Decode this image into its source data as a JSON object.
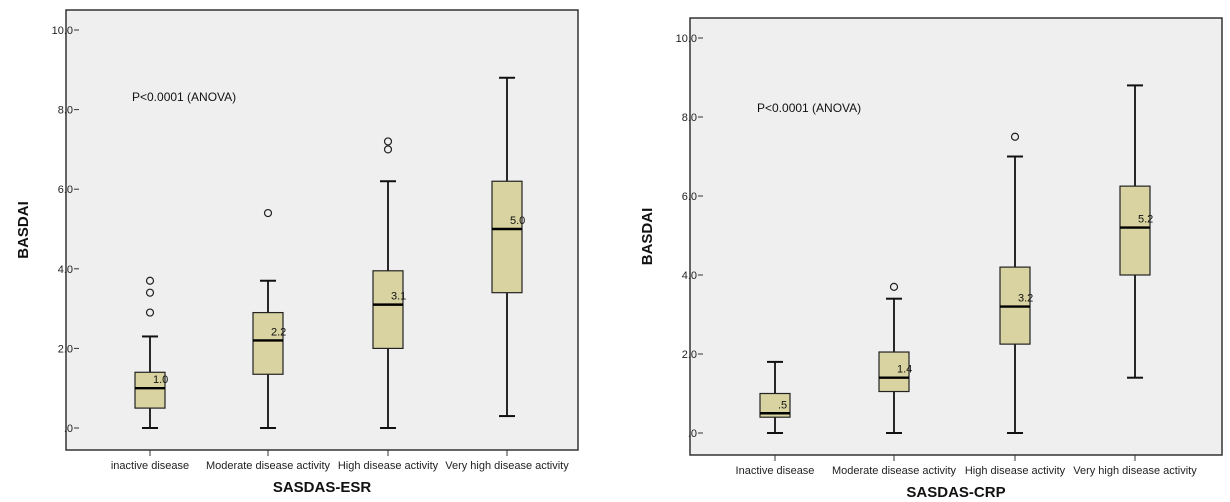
{
  "chart_data": [
    {
      "type": "boxplot",
      "xlabel": "SASDAS-ESR",
      "ylabel": "BASDAI",
      "annotation": "P<0.0001 (ANOVA)",
      "ylim": [
        0,
        10
      ],
      "yticks": [
        ".0",
        "2.0",
        "4.0",
        "6.0",
        "8.0",
        "10.0"
      ],
      "ytick_values": [
        0,
        2,
        4,
        6,
        8,
        10
      ],
      "categories": [
        "inactive disease",
        "Moderate disease activity",
        "High disease activity",
        "Very high disease activity"
      ],
      "boxes": [
        {
          "whisker_low": 0.0,
          "q1": 0.5,
          "median": 1.0,
          "q3": 1.4,
          "whisker_high": 2.3,
          "outliers": [
            2.9,
            3.4,
            3.7
          ],
          "median_label": "1.0"
        },
        {
          "whisker_low": 0.0,
          "q1": 1.35,
          "median": 2.2,
          "q3": 2.9,
          "whisker_high": 3.7,
          "outliers": [
            5.4
          ],
          "median_label": "2.2"
        },
        {
          "whisker_low": 0.0,
          "q1": 2.0,
          "median": 3.1,
          "q3": 3.95,
          "whisker_high": 6.2,
          "outliers": [
            7.0,
            7.2
          ],
          "median_label": "3.1"
        },
        {
          "whisker_low": 0.3,
          "q1": 3.4,
          "median": 5.0,
          "q3": 6.2,
          "whisker_high": 8.8,
          "outliers": [],
          "median_label": "5.0"
        }
      ]
    },
    {
      "type": "boxplot",
      "xlabel": "SASDAS-CRP",
      "ylabel": "BASDAI",
      "annotation": "P<0.0001 (ANOVA)",
      "ylim": [
        0,
        10
      ],
      "yticks": [
        ".0",
        "2.0",
        "4.0",
        "6.0",
        "8.0",
        "10.0"
      ],
      "ytick_values": [
        0,
        2,
        4,
        6,
        8,
        10
      ],
      "categories": [
        "Inactive disease",
        "Moderate disease activity",
        "High disease activity",
        "Very high disease activity"
      ],
      "boxes": [
        {
          "whisker_low": 0.0,
          "q1": 0.4,
          "median": 0.5,
          "q3": 1.0,
          "whisker_high": 1.8,
          "outliers": [],
          "median_label": ".5"
        },
        {
          "whisker_low": 0.0,
          "q1": 1.05,
          "median": 1.4,
          "q3": 2.05,
          "whisker_high": 3.4,
          "outliers": [
            3.7
          ],
          "median_label": "1.4"
        },
        {
          "whisker_low": 0.0,
          "q1": 2.25,
          "median": 3.2,
          "q3": 4.2,
          "whisker_high": 7.0,
          "outliers": [
            7.5
          ],
          "median_label": "3.2"
        },
        {
          "whisker_low": 1.4,
          "q1": 4.0,
          "median": 5.2,
          "q3": 6.25,
          "whisker_high": 8.8,
          "outliers": [],
          "median_label": "5.2"
        }
      ]
    }
  ],
  "colors": {
    "plot_bg": "#efefef",
    "box_fill": "#d8d3a0",
    "frame": "#333333"
  }
}
